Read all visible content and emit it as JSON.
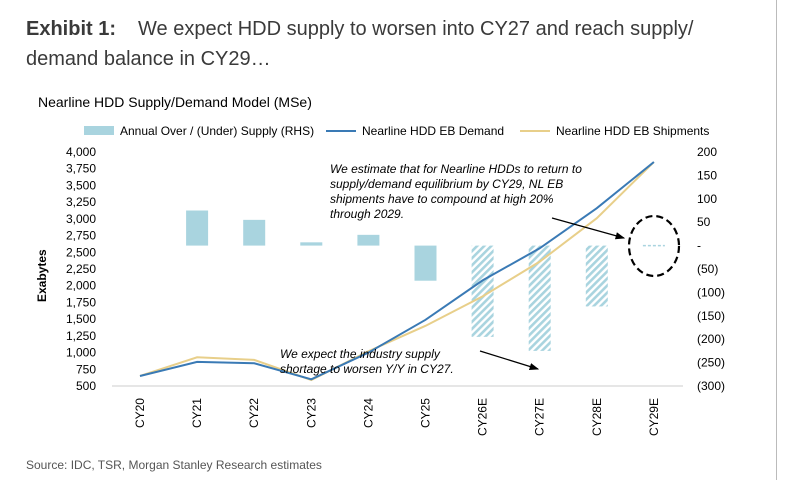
{
  "header": {
    "exhibit_label": "Exhibit 1:",
    "exhibit_text": "We expect HDD supply to worsen into CY27 and reach supply/ demand balance in CY29…"
  },
  "source": "Source: IDC, TSR, Morgan Stanley Research estimates",
  "chart_data": {
    "type": "bar+line",
    "title": "Nearline HDD Supply/Demand Model (MSe)",
    "ylabel": "Exabytes",
    "ylim": [
      500,
      4000
    ],
    "yticks": [
      "4,000",
      "3,750",
      "3,500",
      "3,250",
      "3,000",
      "2,750",
      "2,500",
      "2,250",
      "2,000",
      "1,750",
      "1,500",
      "1,250",
      "1,000",
      "750",
      "500"
    ],
    "y2lim": [
      -300,
      200
    ],
    "y2ticks": [
      "200",
      "150",
      "100",
      "50",
      "-",
      "(50)",
      "(100)",
      "(150)",
      "(200)",
      "(250)",
      "(300)"
    ],
    "categories": [
      "CY20",
      "CY21",
      "CY22",
      "CY23",
      "CY24",
      "CY25",
      "CY26E",
      "CY27E",
      "CY28E",
      "CY29E"
    ],
    "legend_position": "top",
    "colors": {
      "bar": "#a9d4df",
      "demand": "#3a7ab5",
      "shipments": "#e8cf8a"
    },
    "series": [
      {
        "name": "Annual Over / (Under) Supply (RHS)",
        "type": "bar",
        "axis": "right",
        "values": [
          null,
          75,
          55,
          7,
          23,
          -75,
          -195,
          -225,
          -130,
          -2
        ]
      },
      {
        "name": "Nearline HDD EB Demand",
        "type": "line",
        "axis": "left",
        "values": [
          650,
          860,
          840,
          600,
          1000,
          1490,
          2080,
          2560,
          3160,
          3850
        ]
      },
      {
        "name": "Nearline HDD EB Shipments",
        "type": "line",
        "axis": "left",
        "values": [
          650,
          930,
          890,
          590,
          1020,
          1400,
          1840,
          2360,
          3010,
          3850
        ]
      }
    ],
    "annotations": [
      "We estimate that for Nearline HDDs to return to supply/demand equilibrium by CY29, NL EB shipments have to compound at high 20% through 2029.",
      "We expect the industry supply shortage to worsen Y/Y in CY27."
    ]
  }
}
